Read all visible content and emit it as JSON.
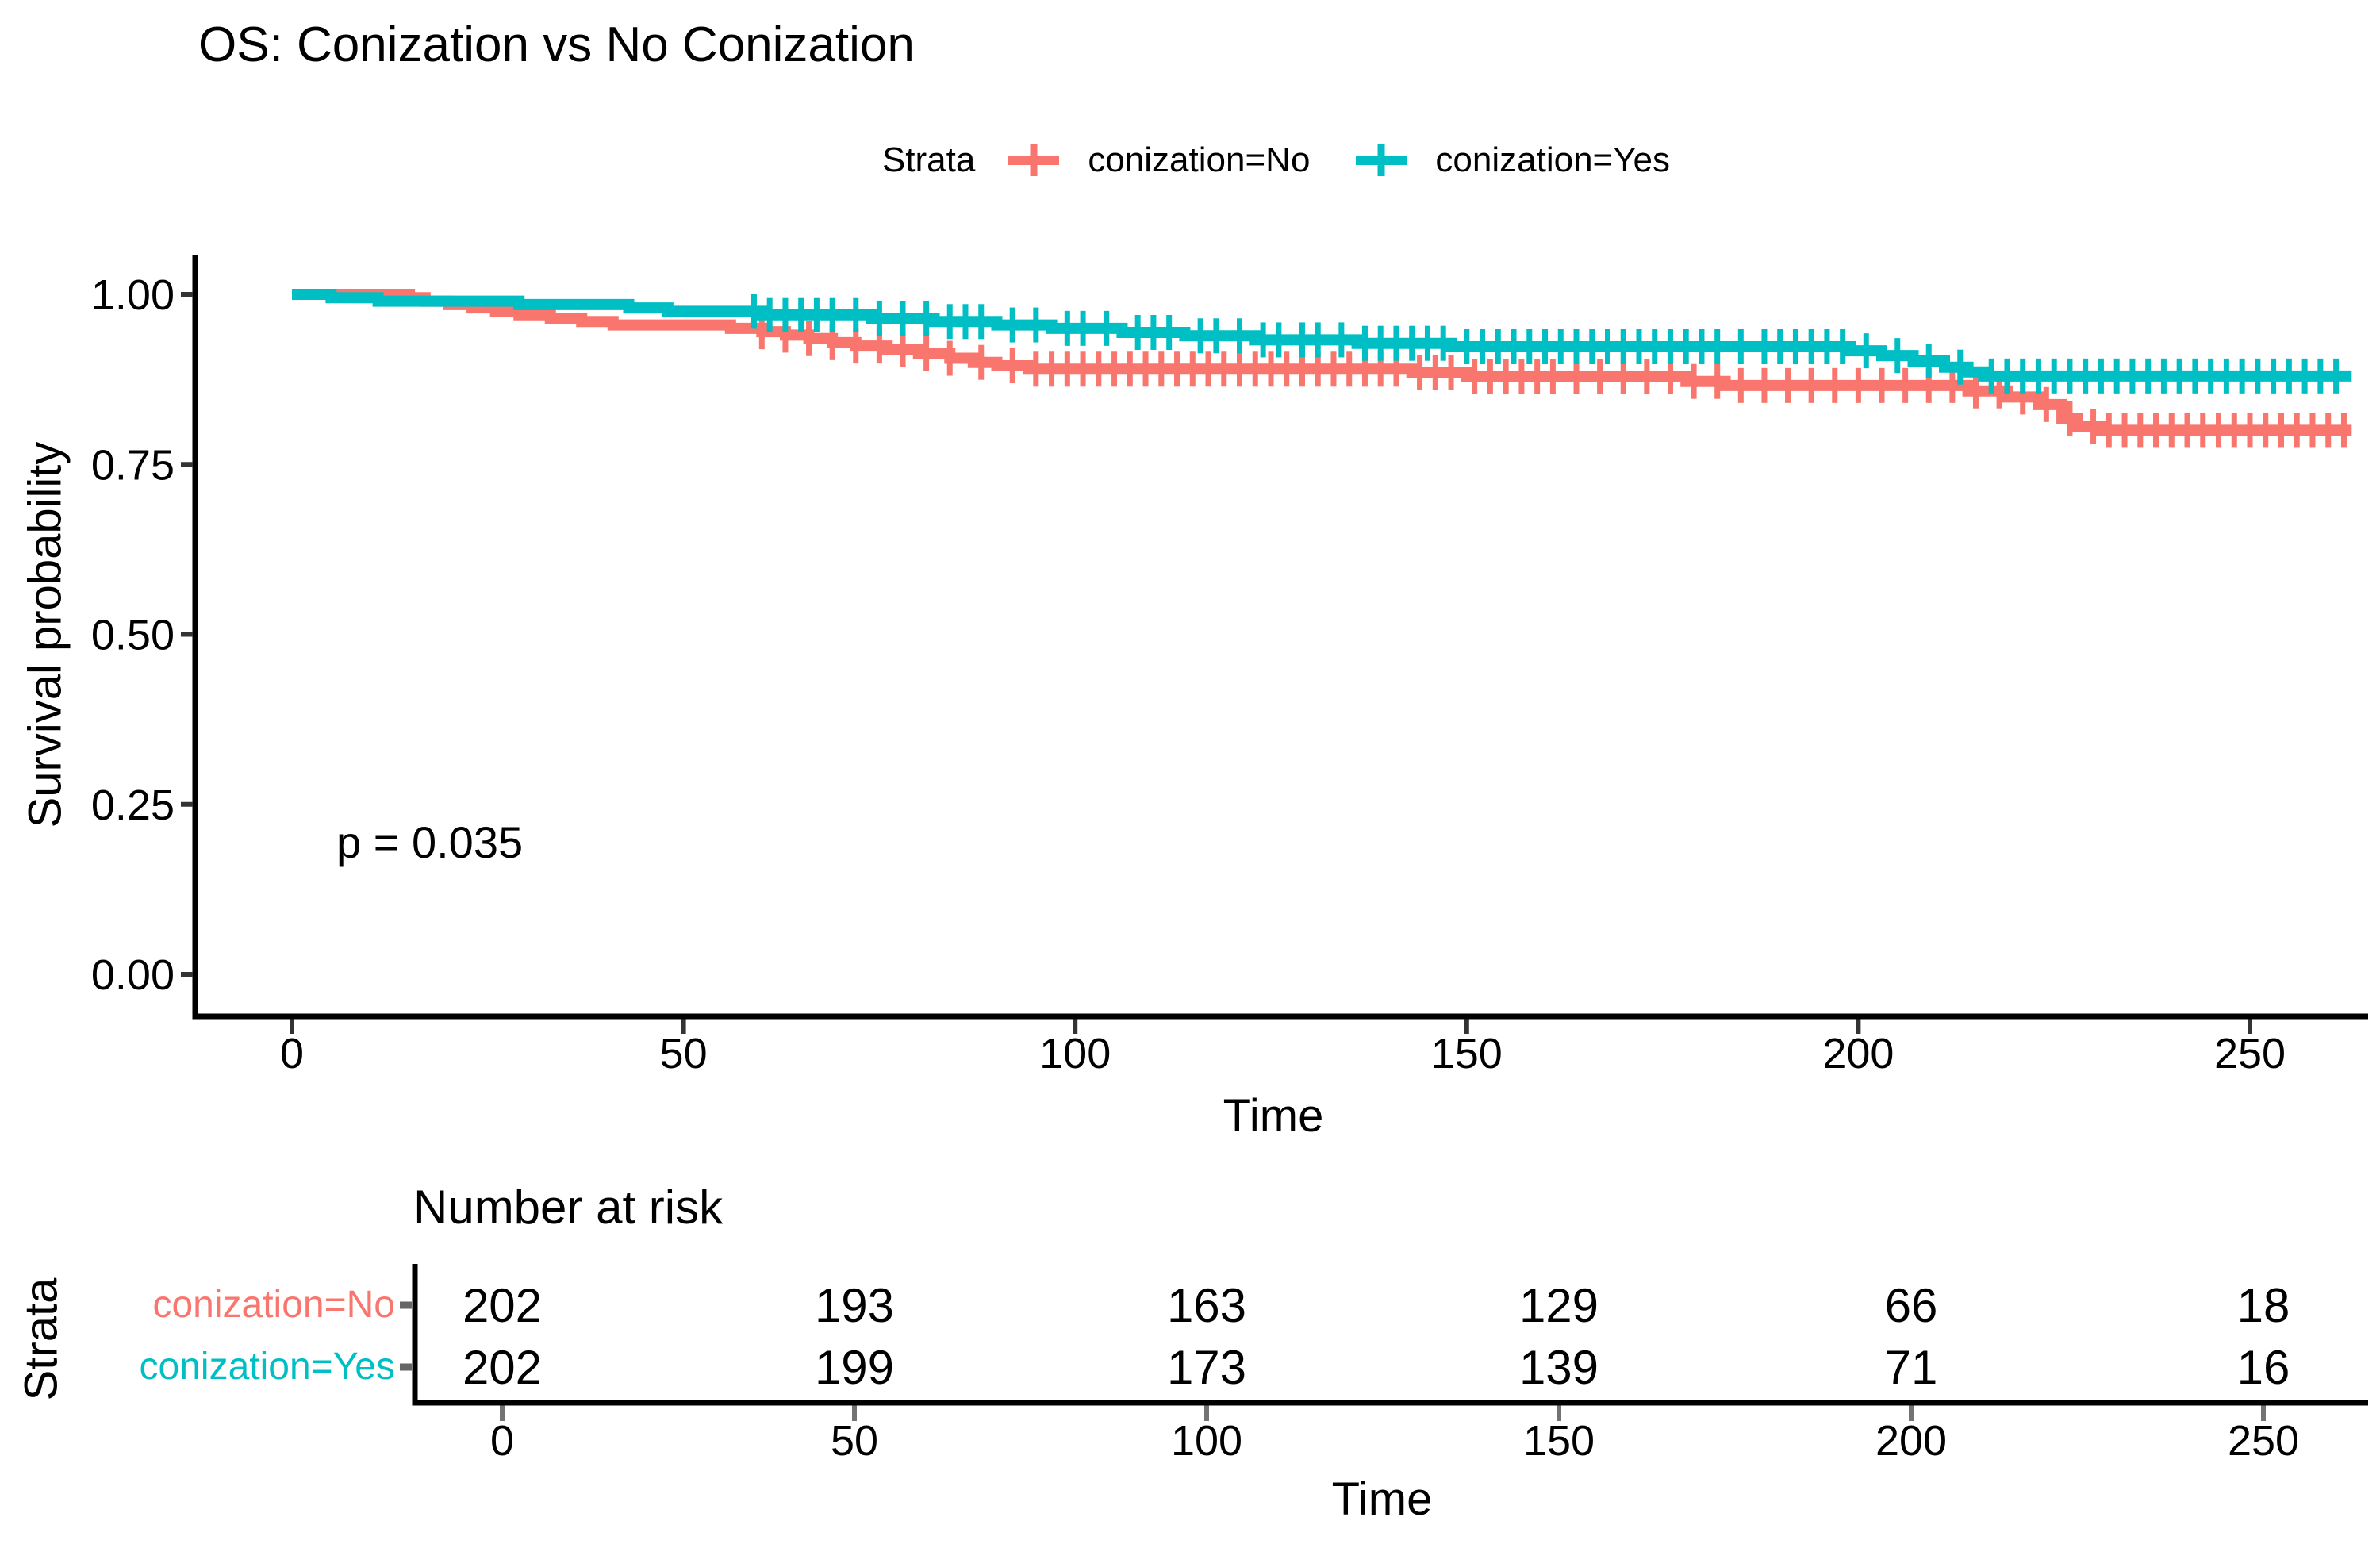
{
  "chart_data": {
    "type": "line",
    "subtype": "kaplan-meier-survival",
    "title": "OS: Conization vs No Conization",
    "xlabel": "Time",
    "ylabel": "Survival probability",
    "p_value_label": "p = 0.035",
    "x_ticks": [
      0,
      50,
      100,
      150,
      200,
      250
    ],
    "y_ticks": [
      {
        "value": 1.0,
        "label": "1.00"
      },
      {
        "value": 0.75,
        "label": "0.75"
      },
      {
        "value": 0.5,
        "label": "0.50"
      },
      {
        "value": 0.25,
        "label": "0.25"
      },
      {
        "value": 0.0,
        "label": "0.00"
      }
    ],
    "xlim": [
      0,
      263
    ],
    "ylim": [
      0,
      1
    ],
    "grid": false,
    "legend": {
      "title": "Strata",
      "position": "top",
      "items": [
        {
          "label": "conization=No",
          "color": "#F8766D"
        },
        {
          "label": "conization=Yes",
          "color": "#00BFC4"
        }
      ]
    },
    "series": [
      {
        "name": "conization=No",
        "color": "#F8766D",
        "steps": [
          [
            0,
            1.0
          ],
          [
            15,
            0.995
          ],
          [
            17,
            0.99
          ],
          [
            20,
            0.985
          ],
          [
            23,
            0.98
          ],
          [
            26,
            0.975
          ],
          [
            29,
            0.97
          ],
          [
            33,
            0.965
          ],
          [
            37,
            0.96
          ],
          [
            41,
            0.955
          ],
          [
            56,
            0.95
          ],
          [
            60,
            0.945
          ],
          [
            63,
            0.94
          ],
          [
            66,
            0.935
          ],
          [
            69,
            0.929
          ],
          [
            72,
            0.924
          ],
          [
            76,
            0.919
          ],
          [
            80,
            0.913
          ],
          [
            84,
            0.906
          ],
          [
            87,
            0.9
          ],
          [
            90,
            0.895
          ],
          [
            94,
            0.89
          ],
          [
            143,
            0.885
          ],
          [
            150,
            0.879
          ],
          [
            178,
            0.872
          ],
          [
            183,
            0.866
          ],
          [
            214,
            0.858
          ],
          [
            219,
            0.849
          ],
          [
            223,
            0.838
          ],
          [
            226,
            0.818
          ],
          [
            228,
            0.806
          ],
          [
            231,
            0.8
          ]
        ],
        "censor_times": [
          60,
          63,
          66,
          69,
          72,
          75,
          78,
          81,
          84,
          88,
          92,
          95,
          97,
          99,
          101,
          103,
          105,
          107,
          109,
          111,
          113,
          115,
          117,
          119,
          121,
          123,
          125,
          127,
          129,
          131,
          133,
          135,
          137,
          139,
          141,
          144,
          146,
          148,
          151,
          153,
          155,
          157,
          159,
          161,
          164,
          167,
          170,
          173,
          176,
          179,
          182,
          185,
          188,
          191,
          194,
          197,
          200,
          203,
          206,
          209,
          212,
          215,
          218,
          221,
          224,
          227,
          230,
          232,
          234,
          236,
          238,
          240,
          242,
          244,
          246,
          248,
          250,
          252,
          254,
          256,
          258,
          260,
          262
        ]
      },
      {
        "name": "conization=Yes",
        "color": "#00BFC4",
        "steps": [
          [
            0,
            1.0
          ],
          [
            5,
            0.995
          ],
          [
            11,
            0.99
          ],
          [
            29,
            0.985
          ],
          [
            43,
            0.98
          ],
          [
            48,
            0.975
          ],
          [
            60,
            0.97
          ],
          [
            74,
            0.965
          ],
          [
            82,
            0.96
          ],
          [
            90,
            0.955
          ],
          [
            97,
            0.95
          ],
          [
            106,
            0.944
          ],
          [
            114,
            0.939
          ],
          [
            123,
            0.933
          ],
          [
            136,
            0.928
          ],
          [
            148,
            0.923
          ],
          [
            199,
            0.917
          ],
          [
            203,
            0.91
          ],
          [
            207,
            0.902
          ],
          [
            211,
            0.893
          ],
          [
            214,
            0.886
          ],
          [
            216,
            0.88
          ]
        ],
        "censor_times": [
          59,
          61,
          63,
          65,
          67,
          69,
          72,
          75,
          78,
          81,
          84,
          86,
          88,
          92,
          95,
          99,
          101,
          104,
          108,
          110,
          112,
          116,
          118,
          121,
          124,
          126,
          129,
          131,
          134,
          137,
          139,
          141,
          143,
          145,
          147,
          150,
          152,
          154,
          156,
          158,
          160,
          162,
          164,
          166,
          168,
          170,
          172,
          174,
          176,
          178,
          180,
          182,
          185,
          188,
          190,
          192,
          194,
          196,
          198,
          201,
          205,
          209,
          213,
          217,
          219,
          221,
          223,
          225,
          227,
          229,
          231,
          233,
          235,
          237,
          239,
          241,
          243,
          245,
          247,
          249,
          251,
          253,
          255,
          257,
          259,
          261
        ]
      }
    ],
    "risk_table": {
      "title": "Number at risk",
      "axis_label": "Strata",
      "xlabel": "Time",
      "x_ticks": [
        0,
        50,
        100,
        150,
        200,
        250
      ],
      "rows": [
        {
          "label": "conization=No",
          "color": "#F8766D",
          "values": [
            202,
            193,
            163,
            129,
            66,
            18
          ]
        },
        {
          "label": "conization=Yes",
          "color": "#00BFC4",
          "values": [
            202,
            199,
            173,
            139,
            71,
            16
          ]
        }
      ]
    },
    "colors": {
      "axis": "#000000",
      "tick": "#333333",
      "table_tick": "#737373",
      "label_tick": "#666666",
      "text": "#000000",
      "background": "#FFFFFF"
    }
  }
}
